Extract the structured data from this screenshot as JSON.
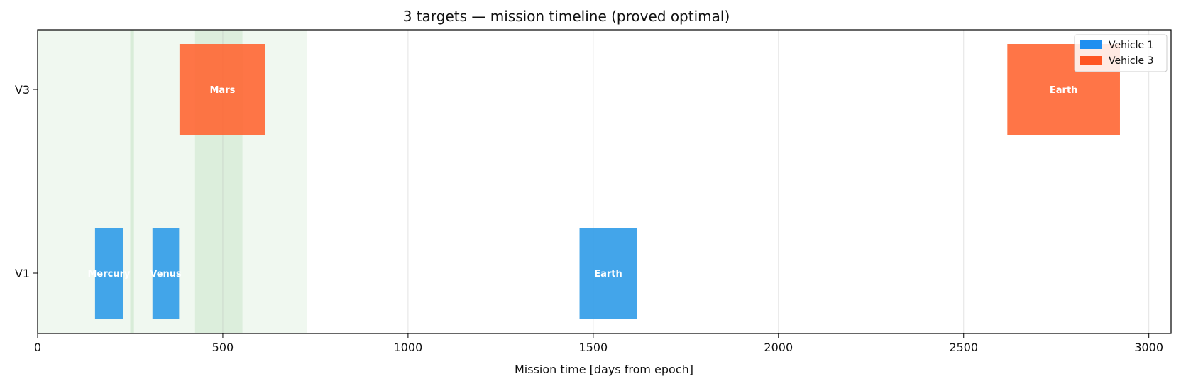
{
  "chart_data": {
    "type": "timeline",
    "title": "3 targets — mission timeline (proved optimal)",
    "xlabel": "Mission time [days from epoch]",
    "xlim": [
      0,
      3060
    ],
    "xticks": [
      0,
      500,
      1000,
      1500,
      2000,
      2500,
      3000
    ],
    "xgrid": true,
    "lanes": [
      "V1",
      "V3"
    ],
    "legend": {
      "placement": "top-right",
      "entries": [
        {
          "name": "Vehicle 1",
          "color": "#1f8ff0"
        },
        {
          "name": "Vehicle 3",
          "color": "#ff5522"
        }
      ]
    },
    "bars": [
      {
        "vehicle": "Vehicle 1",
        "lane": "V1",
        "label": "Mercury",
        "start": 155,
        "end": 230,
        "color": "#2f9be8"
      },
      {
        "vehicle": "Vehicle 1",
        "lane": "V1",
        "label": "Venus",
        "start": 310,
        "end": 382,
        "color": "#2f9be8"
      },
      {
        "vehicle": "Vehicle 1",
        "lane": "V1",
        "label": "Earth",
        "start": 1463,
        "end": 1618,
        "color": "#2f9be8"
      },
      {
        "vehicle": "Vehicle 3",
        "lane": "V3",
        "label": "Mars",
        "start": 383,
        "end": 615,
        "color": "#ff6633"
      },
      {
        "vehicle": "Vehicle 3",
        "lane": "V3",
        "label": "Earth",
        "start": 2618,
        "end": 2922,
        "color": "#ff6633"
      }
    ],
    "shaded_windows": [
      {
        "start": 0,
        "end": 727,
        "color": "#2e9a2e",
        "opacity": 0.07
      },
      {
        "start": 250,
        "end": 260,
        "color": "#2e9a2e",
        "opacity": 0.12
      },
      {
        "start": 425,
        "end": 553,
        "color": "#2e9a2e",
        "opacity": 0.1
      }
    ]
  }
}
